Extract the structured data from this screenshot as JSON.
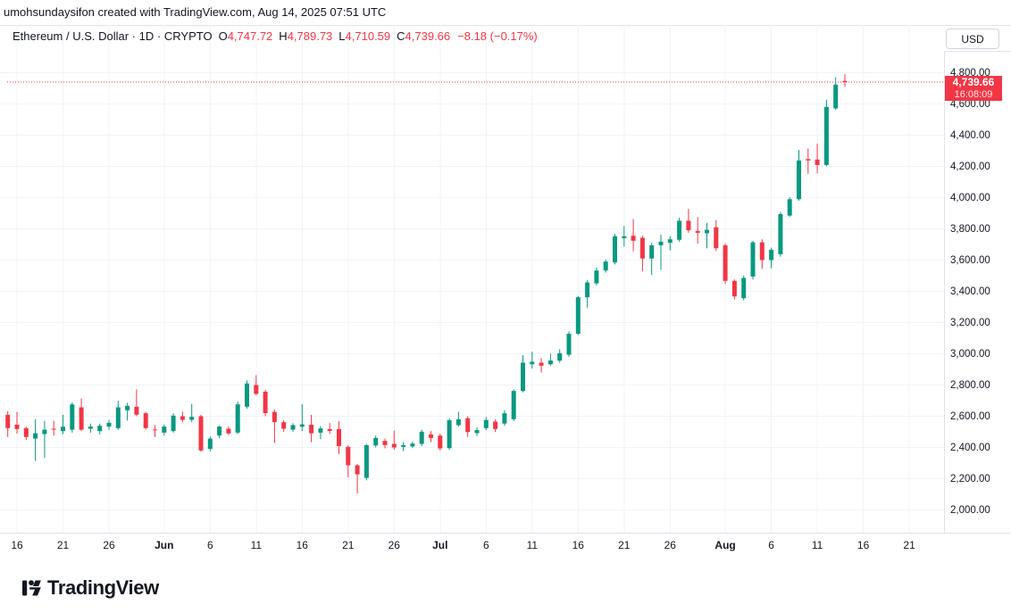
{
  "attribution": "umohsundaysifon created with TradingView.com, Aug 14, 2025 07:51 UTC",
  "legend": {
    "symbol_title": "Ethereum / U.S. Dollar",
    "separator": "·",
    "interval": "1D",
    "exchange": "CRYPTO",
    "open_label": "O",
    "open": "4,747.72",
    "high_label": "H",
    "high": "4,789.73",
    "low_label": "L",
    "low": "4,710.59",
    "close_label": "C",
    "close": "4,739.66",
    "change": "−8.18 (−0.17%)"
  },
  "price_axis": {
    "currency_button": "USD",
    "labels": [
      "4,800.00",
      "4,600.00",
      "4,400.00",
      "4,200.00",
      "4,000.00",
      "3,800.00",
      "3,600.00",
      "3,400.00",
      "3,200.00",
      "3,000.00",
      "2,800.00",
      "2,600.00",
      "2,400.00",
      "2,200.00",
      "2,000.00"
    ],
    "last_price_label": "4,739.66",
    "countdown": "16:08:09"
  },
  "logo": {
    "wordmark": "TradingView",
    "icon": "tradingview-17-mark"
  },
  "colors": {
    "up": "#089981",
    "down": "#f23645",
    "text": "#131722",
    "grid": "#f0f3fa",
    "axis_border": "#e0e3eb",
    "current_price_line": "#f23645"
  },
  "chart_data": {
    "type": "candlestick",
    "title": "Ethereum / U.S. Dollar",
    "symbol": "ETH/USD",
    "interval": "1D",
    "exchange": "CRYPTO",
    "legend_position": "top-left",
    "grid": true,
    "y_axis_side": "right",
    "y_levels": [
      4800,
      4600,
      4400,
      4200,
      4000,
      3800,
      3600,
      3400,
      3200,
      3000,
      2800,
      2600,
      2400,
      2200,
      2000
    ],
    "visible_price_range": [
      1854,
      5106
    ],
    "current_price": 4739.66,
    "x_ticks": [
      {
        "label": "16",
        "day": 1,
        "bold": false
      },
      {
        "label": "21",
        "day": 6,
        "bold": false
      },
      {
        "label": "26",
        "day": 11,
        "bold": false
      },
      {
        "label": "Jun",
        "day": 17,
        "bold": true
      },
      {
        "label": "6",
        "day": 22,
        "bold": false
      },
      {
        "label": "11",
        "day": 27,
        "bold": false
      },
      {
        "label": "16",
        "day": 32,
        "bold": false
      },
      {
        "label": "21",
        "day": 37,
        "bold": false
      },
      {
        "label": "26",
        "day": 42,
        "bold": false
      },
      {
        "label": "Jul",
        "day": 47,
        "bold": true
      },
      {
        "label": "6",
        "day": 52,
        "bold": false
      },
      {
        "label": "11",
        "day": 57,
        "bold": false
      },
      {
        "label": "16",
        "day": 62,
        "bold": false
      },
      {
        "label": "21",
        "day": 67,
        "bold": false
      },
      {
        "label": "26",
        "day": 72,
        "bold": false
      },
      {
        "label": "Aug",
        "day": 78,
        "bold": true
      },
      {
        "label": "6",
        "day": 83,
        "bold": false
      },
      {
        "label": "11",
        "day": 88,
        "bold": false
      },
      {
        "label": "16",
        "day": 93,
        "bold": false
      },
      {
        "label": "21",
        "day": 98,
        "bold": false
      }
    ],
    "columns": [
      "date",
      "open",
      "high",
      "low",
      "close"
    ],
    "candles": [
      [
        "May 15",
        2609,
        2632,
        2467,
        2524
      ],
      [
        "May 16",
        2546,
        2628,
        2489,
        2518
      ],
      [
        "May 17",
        2524,
        2533,
        2448,
        2467
      ],
      [
        "May 18",
        2457,
        2581,
        2314,
        2491
      ],
      [
        "May 19",
        2486,
        2571,
        2333,
        2514
      ],
      [
        "May 20",
        2520,
        2571,
        2476,
        2514
      ],
      [
        "May 21",
        2505,
        2609,
        2486,
        2533
      ],
      [
        "May 22",
        2514,
        2689,
        2495,
        2676
      ],
      [
        "May 23",
        2657,
        2714,
        2505,
        2514
      ],
      [
        "May 24",
        2520,
        2553,
        2495,
        2534
      ],
      [
        "May 25",
        2505,
        2553,
        2484,
        2539
      ],
      [
        "May 26",
        2534,
        2577,
        2514,
        2558
      ],
      [
        "May 27",
        2524,
        2699,
        2514,
        2657
      ],
      [
        "May 28",
        2638,
        2686,
        2572,
        2667
      ],
      [
        "May 29",
        2661,
        2772,
        2600,
        2610
      ],
      [
        "May 30",
        2619,
        2629,
        2514,
        2524
      ],
      [
        "May 31",
        2515,
        2543,
        2467,
        2512
      ],
      [
        "Jun 1",
        2495,
        2547,
        2476,
        2534
      ],
      [
        "Jun 2",
        2505,
        2619,
        2495,
        2604
      ],
      [
        "Jun 3",
        2600,
        2629,
        2562,
        2577
      ],
      [
        "Jun 4",
        2577,
        2680,
        2562,
        2596
      ],
      [
        "Jun 5",
        2600,
        2610,
        2372,
        2381
      ],
      [
        "Jun 6",
        2391,
        2471,
        2376,
        2457
      ],
      [
        "Jun 7",
        2476,
        2540,
        2460,
        2534
      ],
      [
        "Jun 8",
        2520,
        2535,
        2480,
        2490
      ],
      [
        "Jun 9",
        2495,
        2695,
        2486,
        2676
      ],
      [
        "Jun 10",
        2661,
        2829,
        2648,
        2810
      ],
      [
        "Jun 11",
        2800,
        2863,
        2734,
        2743
      ],
      [
        "Jun 12",
        2757,
        2770,
        2600,
        2620
      ],
      [
        "Jun 13",
        2628,
        2644,
        2428,
        2562
      ],
      [
        "Jun 14",
        2562,
        2575,
        2499,
        2520
      ],
      [
        "Jun 15",
        2514,
        2556,
        2499,
        2543
      ],
      [
        "Jun 16",
        2533,
        2676,
        2505,
        2548
      ],
      [
        "Jun 17",
        2546,
        2609,
        2434,
        2491
      ],
      [
        "Jun 18",
        2495,
        2537,
        2453,
        2522
      ],
      [
        "Jun 19",
        2518,
        2556,
        2486,
        2506
      ],
      [
        "Jun 20",
        2518,
        2567,
        2358,
        2409
      ],
      [
        "Jun 21",
        2404,
        2415,
        2209,
        2286
      ],
      [
        "Jun 22",
        2286,
        2295,
        2105,
        2228
      ],
      [
        "Jun 23",
        2205,
        2423,
        2190,
        2415
      ],
      [
        "Jun 24",
        2413,
        2476,
        2400,
        2461
      ],
      [
        "Jun 25",
        2442,
        2457,
        2394,
        2415
      ],
      [
        "Jun 26",
        2423,
        2508,
        2385,
        2400
      ],
      [
        "Jun 27",
        2404,
        2434,
        2377,
        2415
      ],
      [
        "Jun 28",
        2407,
        2438,
        2396,
        2425
      ],
      [
        "Jun 29",
        2423,
        2514,
        2409,
        2501
      ],
      [
        "Jun 30",
        2484,
        2505,
        2434,
        2461
      ],
      [
        "Jul 1",
        2476,
        2489,
        2381,
        2394
      ],
      [
        "Jul 2",
        2396,
        2586,
        2385,
        2575
      ],
      [
        "Jul 3",
        2543,
        2629,
        2533,
        2581
      ],
      [
        "Jul 4",
        2587,
        2600,
        2467,
        2499
      ],
      [
        "Jul 5",
        2492,
        2530,
        2473,
        2511
      ],
      [
        "Jul 6",
        2524,
        2595,
        2511,
        2576
      ],
      [
        "Jul 7",
        2566,
        2581,
        2499,
        2518
      ],
      [
        "Jul 8",
        2553,
        2639,
        2538,
        2619
      ],
      [
        "Jul 9",
        2581,
        2772,
        2568,
        2762
      ],
      [
        "Jul 10",
        2762,
        2991,
        2753,
        2943
      ],
      [
        "Jul 11",
        2933,
        3014,
        2905,
        2949
      ],
      [
        "Jul 12",
        2943,
        2972,
        2880,
        2924
      ],
      [
        "Jul 13",
        2933,
        3000,
        2924,
        2957
      ],
      [
        "Jul 14",
        2956,
        3029,
        2943,
        3004
      ],
      [
        "Jul 15",
        2994,
        3143,
        2981,
        3128
      ],
      [
        "Jul 16",
        3128,
        3370,
        3120,
        3362
      ],
      [
        "Jul 17",
        3362,
        3471,
        3295,
        3457
      ],
      [
        "Jul 18",
        3451,
        3552,
        3438,
        3533
      ],
      [
        "Jul 19",
        3533,
        3604,
        3520,
        3591
      ],
      [
        "Jul 20",
        3585,
        3768,
        3572,
        3753
      ],
      [
        "Jul 21",
        3740,
        3819,
        3686,
        3753
      ],
      [
        "Jul 22",
        3756,
        3863,
        3657,
        3724
      ],
      [
        "Jul 23",
        3743,
        3756,
        3528,
        3610
      ],
      [
        "Jul 24",
        3610,
        3711,
        3505,
        3695
      ],
      [
        "Jul 25",
        3695,
        3762,
        3537,
        3718
      ],
      [
        "Jul 26",
        3711,
        3753,
        3661,
        3733
      ],
      [
        "Jul 27",
        3730,
        3871,
        3718,
        3852
      ],
      [
        "Jul 28",
        3852,
        3928,
        3775,
        3791
      ],
      [
        "Jul 29",
        3787,
        3876,
        3705,
        3775
      ],
      [
        "Jul 30",
        3772,
        3838,
        3676,
        3794
      ],
      [
        "Jul 31",
        3810,
        3857,
        3657,
        3676
      ],
      [
        "Aug 1",
        3695,
        3705,
        3448,
        3467
      ],
      [
        "Aug 2",
        3467,
        3476,
        3349,
        3368
      ],
      [
        "Aug 3",
        3356,
        3501,
        3343,
        3486
      ],
      [
        "Aug 4",
        3495,
        3724,
        3476,
        3714
      ],
      [
        "Aug 5",
        3714,
        3733,
        3543,
        3600
      ],
      [
        "Aug 6",
        3600,
        3680,
        3547,
        3666
      ],
      [
        "Aug 7",
        3638,
        3908,
        3622,
        3895
      ],
      [
        "Aug 8",
        3885,
        4004,
        3876,
        3990
      ],
      [
        "Aug 9",
        3990,
        4305,
        3981,
        4238
      ],
      [
        "Aug 10",
        4247,
        4314,
        4152,
        4238
      ],
      [
        "Aug 11",
        4244,
        4346,
        4156,
        4209
      ],
      [
        "Aug 12",
        4209,
        4628,
        4200,
        4581
      ],
      [
        "Aug 13",
        4571,
        4771,
        4562,
        4724
      ],
      [
        "Aug 14",
        4747.72,
        4789.73,
        4710.59,
        4739.66
      ]
    ]
  }
}
